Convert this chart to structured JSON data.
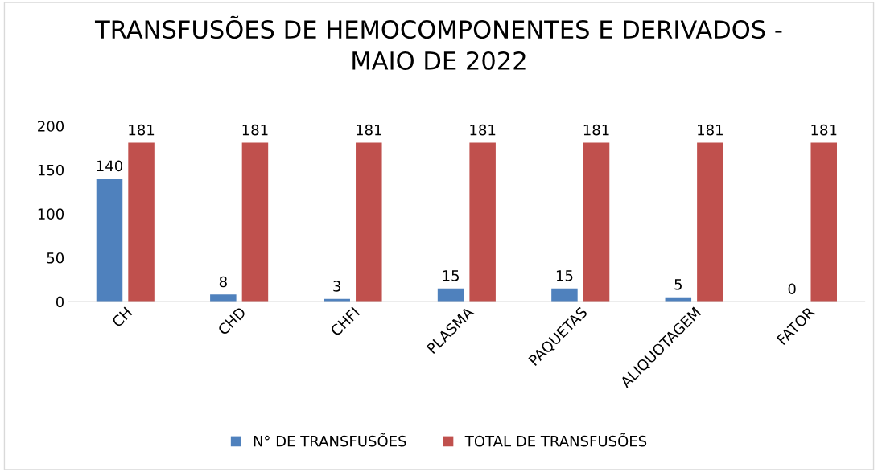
{
  "chart_data": {
    "type": "bar",
    "title": "TRANSFUSÕES DE HEMOCOMPONENTES E DERIVADOS -\nMAIO DE 2022",
    "categories": [
      "CH",
      "CHD",
      "CHFI",
      "PLASMA",
      "PAQUETAS",
      "ALIQUOTAGEM",
      "FATOR"
    ],
    "series": [
      {
        "name": "N° DE TRANSFUSÕES",
        "color": "#4f81bd",
        "values": [
          140,
          8,
          3,
          15,
          15,
          5,
          0
        ]
      },
      {
        "name": "TOTAL DE TRANSFUSÕES",
        "color": "#c0504d",
        "values": [
          181,
          181,
          181,
          181,
          181,
          181,
          181
        ]
      }
    ],
    "ylim": [
      0,
      200
    ],
    "yticks": [
      0,
      50,
      100,
      150,
      200
    ],
    "grid": false,
    "legend": "bottom",
    "data_labels": true
  }
}
